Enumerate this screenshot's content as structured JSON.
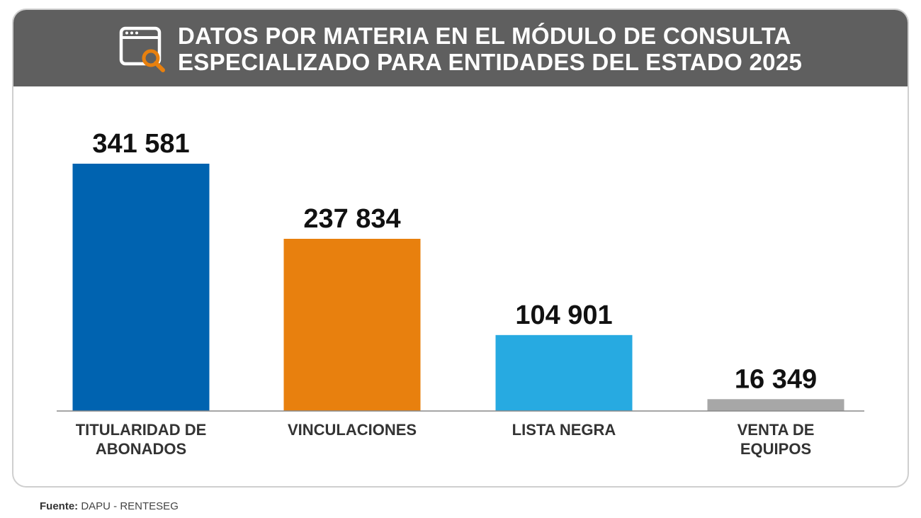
{
  "header": {
    "title_line1": "DATOS POR MATERIA EN EL MÓDULO DE CONSULTA",
    "title_line2": "ESPECIALIZADO PARA ENTIDADES DEL ESTADO 2025",
    "icon": "browser-search-icon",
    "background_color": "#5f5f5f"
  },
  "chart_data": {
    "type": "bar",
    "categories": [
      [
        "TITULARIDAD DE",
        "ABONADOS"
      ],
      [
        "VINCULACIONES"
      ],
      [
        "LISTA NEGRA"
      ],
      [
        "VENTA DE",
        "EQUIPOS"
      ]
    ],
    "values": [
      341581,
      237834,
      104901,
      16349
    ],
    "value_labels": [
      "341 581",
      "237 834",
      "104 901",
      "16 349"
    ],
    "colors": [
      "#0063b0",
      "#e8800e",
      "#27aae1",
      "#a7a7a7"
    ],
    "ylim": [
      0,
      341581
    ],
    "grid": false,
    "title": "",
    "xlabel": "",
    "ylabel": ""
  },
  "footer": {
    "source_label": "Fuente:",
    "source_value": " DAPU - RENTESEG"
  }
}
